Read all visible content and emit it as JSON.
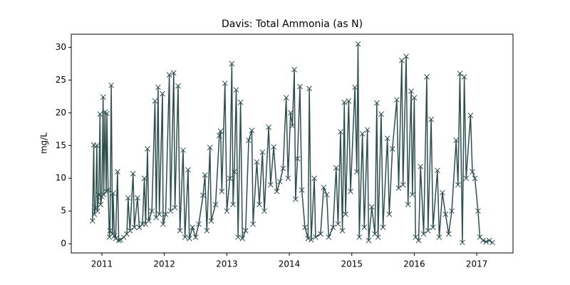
{
  "chart_data": {
    "type": "line",
    "title": "Davis: Total Ammonia (as N)",
    "ylabel": "mg/L",
    "marker": "x",
    "color": "#2f4f4f",
    "x": [
      2010.85,
      2010.87,
      2010.88,
      2010.9,
      2010.92,
      2010.93,
      2010.95,
      2010.97,
      2010.98,
      2011.0,
      2011.02,
      2011.03,
      2011.05,
      2011.07,
      2011.08,
      2011.1,
      2011.12,
      2011.13,
      2011.15,
      2011.17,
      2011.18,
      2011.2,
      2011.22,
      2011.25,
      2011.27,
      2011.3,
      2011.35,
      2011.4,
      2011.42,
      2011.45,
      2011.5,
      2011.52,
      2011.57,
      2011.6,
      2011.65,
      2011.68,
      2011.7,
      2011.73,
      2011.75,
      2011.8,
      2011.85,
      2011.87,
      2011.9,
      2011.92,
      2011.97,
      2011.98,
      2012.02,
      2012.08,
      2012.1,
      2012.15,
      2012.17,
      2012.22,
      2012.25,
      2012.3,
      2012.33,
      2012.38,
      2012.4,
      2012.45,
      2012.5,
      2012.55,
      2012.62,
      2012.65,
      2012.68,
      2012.73,
      2012.75,
      2012.82,
      2012.88,
      2012.9,
      2012.92,
      2012.97,
      2013.0,
      2013.05,
      2013.08,
      2013.1,
      2013.12,
      2013.15,
      2013.18,
      2013.22,
      2013.25,
      2013.3,
      2013.35,
      2013.4,
      2013.42,
      2013.48,
      2013.52,
      2013.57,
      2013.6,
      2013.67,
      2013.7,
      2013.75,
      2013.8,
      2013.85,
      2013.9,
      2013.95,
      2013.98,
      2014.02,
      2014.05,
      2014.08,
      2014.1,
      2014.13,
      2014.17,
      2014.2,
      2014.25,
      2014.3,
      2014.32,
      2014.35,
      2014.4,
      2014.42,
      2014.5,
      2014.55,
      2014.6,
      2014.63,
      2014.7,
      2014.75,
      2014.78,
      2014.82,
      2014.85,
      2014.88,
      2014.9,
      2014.95,
      2014.98,
      2015.05,
      2015.08,
      2015.1,
      2015.12,
      2015.17,
      2015.2,
      2015.25,
      2015.27,
      2015.32,
      2015.37,
      2015.4,
      2015.42,
      2015.47,
      2015.5,
      2015.57,
      2015.6,
      2015.65,
      2015.72,
      2015.75,
      2015.8,
      2015.82,
      2015.87,
      2015.9,
      2015.95,
      2015.97,
      2016.0,
      2016.02,
      2016.07,
      2016.1,
      2016.15,
      2016.2,
      2016.22,
      2016.27,
      2016.3,
      2016.37,
      2016.4,
      2016.45,
      2016.5,
      2016.55,
      2016.6,
      2016.67,
      2016.7,
      2016.73,
      2016.77,
      2016.8,
      2016.83,
      2016.9,
      2016.93,
      2016.97,
      2017.02,
      2017.05,
      2017.1,
      2017.15,
      2017.2,
      2017.25
    ],
    "values": [
      3.5,
      15.1,
      4.5,
      5.5,
      15.0,
      5.0,
      7.5,
      19.8,
      6,
      7.2,
      22.4,
      7.5,
      20.1,
      8,
      19.9,
      8.2,
      1.0,
      2.0,
      24.2,
      1.5,
      7.7,
      1.2,
      0.8,
      11.0,
      0.5,
      0.6,
      1.0,
      1.5,
      7.0,
      2.0,
      10.7,
      2.5,
      7.0,
      2.5,
      3.0,
      10.0,
      3.0,
      14.5,
      3.5,
      5.0,
      21.8,
      4.0,
      23.9,
      4.5,
      22.9,
      3.0,
      4.5,
      25.8,
      5.0,
      26.1,
      5.5,
      24.1,
      2.0,
      14.3,
      1.0,
      11.3,
      0.8,
      2.5,
      1.0,
      3.0,
      7.4,
      10.5,
      2.0,
      14.7,
      3.5,
      6.0,
      16.5,
      17.2,
      8.0,
      24.5,
      5.0,
      10.0,
      27.5,
      6.0,
      11.0,
      23.5,
      1.0,
      21.6,
      0.8,
      2.0,
      15.8,
      17.3,
      3.0,
      12.5,
      6.0,
      14.0,
      5.0,
      17.8,
      9.0,
      14.8,
      8.0,
      9.5,
      11.5,
      22.3,
      10.0,
      20.0,
      18.0,
      26.6,
      6.8,
      13.0,
      24.0,
      8.2,
      2.5,
      0.8,
      23.7,
      0.6,
      10.0,
      1.0,
      1.5,
      8.6,
      7.5,
      1.0,
      2.5,
      11.6,
      3.0,
      17.1,
      2.0,
      21.6,
      4.5,
      21.8,
      8.0,
      23.9,
      11.0,
      30.5,
      1.0,
      16.8,
      2.5,
      17.4,
      0.5,
      5.6,
      1.5,
      21.5,
      1.0,
      19.8,
      2.5,
      16.1,
      4.5,
      14.5,
      22.0,
      8.5,
      28.0,
      9.0,
      28.6,
      6.0,
      23.3,
      7.5,
      22.3,
      1.0,
      0.5,
      11.8,
      1.5,
      25.5,
      2.0,
      19.0,
      2.5,
      11.2,
      1.0,
      7.8,
      4.5,
      1.5,
      5.0,
      15.8,
      9.0,
      26.0,
      0.2,
      25.5,
      10.0,
      19.6,
      11.0,
      10.0,
      5.0,
      1.0,
      0.5,
      0.3,
      0.5,
      0.2
    ],
    "xlim": [
      2010.51,
      2017.58
    ],
    "xticks": [
      2011,
      2012,
      2013,
      2014,
      2015,
      2016,
      2017
    ],
    "ylim": [
      -1.4,
      32.0
    ],
    "yticks": [
      0,
      5,
      10,
      15,
      20,
      25,
      30
    ]
  }
}
